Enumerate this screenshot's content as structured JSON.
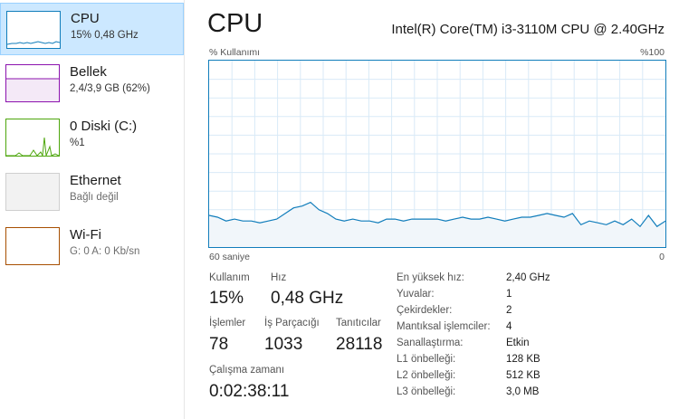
{
  "sidebar": {
    "items": [
      {
        "title": "CPU",
        "subtitle": "15% 0,48 GHz",
        "color": "#117dbb"
      },
      {
        "title": "Bellek",
        "subtitle": "2,4/3,9 GB (62%)",
        "color": "#8b12ae"
      },
      {
        "title": "0 Diski (C:)",
        "subtitle": "%1",
        "color": "#4da60c"
      },
      {
        "title": "Ethernet",
        "subtitle": "Bağlı değil",
        "color": "#a7a7a7"
      },
      {
        "title": "Wi-Fi",
        "subtitle": "G: 0 A: 0 Kb/sn",
        "color": "#a74f01"
      }
    ]
  },
  "main": {
    "title": "CPU",
    "cpu_model": "Intel(R) Core(TM) i3-3110M CPU @ 2.40GHz",
    "graph": {
      "y_label": "% Kullanımı",
      "y_max_label": "%100",
      "x_left_label": "60 saniye",
      "x_right_label": "0",
      "line_color": "#117dbb",
      "fill_color": "#f1f6fa",
      "grid_color": "#d9eaf7",
      "values": [
        17,
        16,
        14,
        15,
        14,
        14,
        13,
        14,
        15,
        18,
        21,
        22,
        24,
        20,
        18,
        15,
        14,
        15,
        14,
        14,
        13,
        15,
        15,
        14,
        15,
        15,
        15,
        15,
        14,
        15,
        16,
        15,
        15,
        16,
        15,
        14,
        15,
        16,
        16,
        17,
        18,
        17,
        16,
        18,
        12,
        14,
        13,
        12,
        14,
        12,
        15,
        11,
        17,
        11,
        14
      ]
    },
    "stats": {
      "usage_label": "Kullanım",
      "usage_value": "15%",
      "speed_label": "Hız",
      "speed_value": "0,48 GHz",
      "processes_label": "İşlemler",
      "processes_value": "78",
      "threads_label": "İş Parçacığı",
      "threads_value": "1033",
      "handles_label": "Tanıtıcılar",
      "handles_value": "28118",
      "uptime_label": "Çalışma zamanı",
      "uptime_value": "0:02:38:11"
    },
    "details": [
      {
        "label": "En yüksek hız:",
        "value": "2,40 GHz"
      },
      {
        "label": "Yuvalar:",
        "value": "1"
      },
      {
        "label": "Çekirdekler:",
        "value": "2"
      },
      {
        "label": "Mantıksal işlemciler:",
        "value": "4"
      },
      {
        "label": "Sanallaştırma:",
        "value": "Etkin"
      },
      {
        "label": "L1 önbelleği:",
        "value": "128 KB"
      },
      {
        "label": "L2 önbelleği:",
        "value": "512 KB"
      },
      {
        "label": "L3 önbelleği:",
        "value": "3,0 MB"
      }
    ]
  }
}
